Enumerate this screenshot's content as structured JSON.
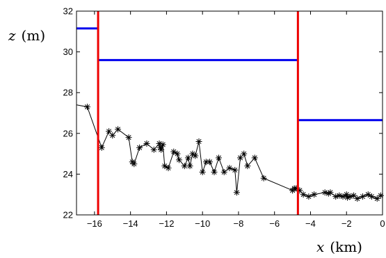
{
  "chart_data": {
    "type": "line",
    "xlabel_var": "x",
    "xlabel_unit": "(km)",
    "ylabel_var": "z",
    "ylabel_unit": "(m)",
    "xlim": [
      -17,
      0
    ],
    "ylim": [
      22,
      32
    ],
    "xticks": [
      -16,
      -14,
      -12,
      -10,
      -8,
      -6,
      -4,
      -2,
      0
    ],
    "yticks": [
      22,
      24,
      26,
      28,
      30,
      32
    ],
    "xtick_labels": [
      "−16",
      "−14",
      "−12",
      "−10",
      "−8",
      "−6",
      "−4",
      "−2",
      "0"
    ],
    "ytick_labels": [
      "22",
      "24",
      "26",
      "28",
      "30",
      "32"
    ],
    "grid": false,
    "series": [
      {
        "kind": "line-with-star-markers",
        "color": "#000000",
        "x": [
          -17.0,
          -16.4,
          -15.6,
          -15.2,
          -15.0,
          -14.7,
          -14.1,
          -13.9,
          -13.8,
          -13.5,
          -13.1,
          -12.7,
          -12.4,
          -12.35,
          -12.3,
          -12.2,
          -12.1,
          -11.9,
          -11.6,
          -11.4,
          -11.3,
          -11.0,
          -10.8,
          -10.7,
          -10.55,
          -10.4,
          -10.2,
          -10.0,
          -9.8,
          -9.6,
          -9.35,
          -9.1,
          -8.8,
          -8.5,
          -8.2,
          -8.1,
          -7.9,
          -7.7,
          -7.5,
          -7.1,
          -6.6,
          -5.9,
          -5.5,
          -5.0,
          -4.9,
          -4.8,
          -4.6,
          -4.4,
          -4.1,
          -3.8,
          -3.2,
          -3.0,
          -2.9,
          -2.6,
          -2.4,
          -2.2,
          -2.0,
          -1.95,
          -1.8,
          -1.6,
          -1.4,
          -1.1,
          -0.8,
          -0.6,
          -0.3,
          -0.1
        ],
        "y": [
          27.4,
          27.3,
          25.3,
          26.1,
          25.9,
          26.2,
          25.8,
          24.6,
          24.5,
          25.3,
          25.5,
          25.2,
          25.5,
          25.3,
          25.2,
          25.45,
          24.4,
          24.3,
          25.1,
          25.0,
          24.7,
          24.4,
          24.8,
          24.4,
          25.0,
          24.9,
          25.6,
          24.1,
          24.6,
          24.6,
          24.1,
          24.8,
          24.1,
          24.3,
          24.2,
          23.1,
          24.8,
          25.0,
          24.4,
          24.8,
          23.8,
          23.2,
          23.3,
          23.3,
          23.2,
          23.0,
          22.9,
          23.0,
          23.1,
          23.05,
          23.1,
          22.9,
          22.95,
          22.9,
          23.0,
          22.85,
          22.9,
          22.95,
          22.8,
          22.9,
          23.0,
          22.9,
          22.8,
          22.95,
          23.0,
          23.0
        ],
        "x_full": [
          -17.0,
          -16.4,
          -15.6,
          -15.2,
          -15.0,
          -14.7,
          -14.1,
          -13.9,
          -13.8,
          -13.5,
          -13.1,
          -12.7,
          -12.4,
          -12.35,
          -12.3,
          -12.2,
          -12.1,
          -11.9,
          -11.6,
          -11.4,
          -11.3,
          -11.0,
          -10.8,
          -10.7,
          -10.55,
          -10.4,
          -10.2,
          -10.0,
          -9.8,
          -9.6,
          -9.35,
          -9.1,
          -8.8,
          -8.5,
          -8.2,
          -8.1,
          -7.9,
          -7.7,
          -7.5,
          -7.1,
          -6.6,
          -5.0,
          -4.9,
          -4.8,
          -4.6,
          -4.4,
          -4.1,
          -3.8,
          -3.2,
          -3.0,
          -2.9,
          -2.6,
          -2.4,
          -2.2,
          -2.0,
          -1.95,
          -1.8,
          -1.6,
          -1.4,
          -1.1,
          -0.8,
          -0.6,
          -0.3,
          -0.1
        ],
        "y_full": [
          27.4,
          27.3,
          25.3,
          26.1,
          25.9,
          26.2,
          25.8,
          24.6,
          24.5,
          25.3,
          25.5,
          25.2,
          25.5,
          25.3,
          25.2,
          25.45,
          24.4,
          24.3,
          25.1,
          25.0,
          24.7,
          24.4,
          24.8,
          24.4,
          25.0,
          24.9,
          25.6,
          24.1,
          24.6,
          24.6,
          24.1,
          24.8,
          24.1,
          24.3,
          24.2,
          23.1,
          24.8,
          25.0,
          24.4,
          24.8,
          23.8,
          23.2,
          23.3,
          23.3,
          23.2,
          23.0,
          22.9,
          23.0,
          23.1,
          23.05,
          23.1,
          22.9,
          22.95,
          22.9,
          23.0,
          22.85,
          22.9,
          22.95,
          22.8,
          22.9,
          23.0,
          22.9,
          22.8,
          22.95
        ]
      }
    ],
    "step_levels": [
      {
        "color": "#0000ee",
        "segments": [
          {
            "x0": -17.0,
            "x1": -15.8,
            "y": 31.15
          },
          {
            "x0": -15.8,
            "x1": -4.7,
            "y": 29.6
          },
          {
            "x0": -4.7,
            "x1": 0.0,
            "y": 26.65
          }
        ]
      }
    ],
    "vertical_lines": [
      {
        "color": "#ee0000",
        "x": -15.8
      },
      {
        "color": "#ee0000",
        "x": -4.7
      }
    ]
  }
}
